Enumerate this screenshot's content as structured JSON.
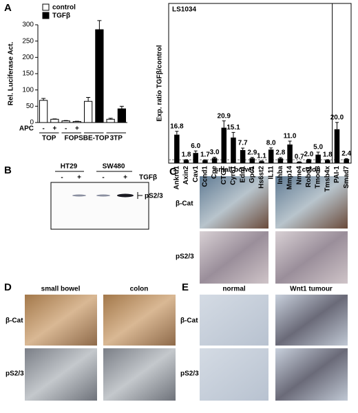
{
  "panel_labels": [
    "A",
    "B",
    "C",
    "D",
    "E"
  ],
  "chart_data": [
    {
      "type": "bar",
      "ylabel": "Rel. Luciferase Act.",
      "ylim": [
        0,
        300
      ],
      "yticks": [
        0,
        50,
        100,
        150,
        200,
        250,
        300
      ],
      "legend": "top-left",
      "row_label": "APC",
      "categories": [
        "-",
        "+",
        "-",
        "+",
        null,
        null,
        null,
        null
      ],
      "groups": [
        "TOP",
        "FOP",
        "SBE-TOP",
        "3TP"
      ],
      "series": [
        {
          "name": "control",
          "color": "#ffffff",
          "values": [
            68,
            10,
            5,
            3,
            65,
            null,
            10,
            null
          ],
          "errors": [
            6,
            1,
            1,
            1,
            12,
            null,
            3,
            null
          ]
        },
        {
          "name": "TGFβ",
          "color": "#000000",
          "values": [
            null,
            null,
            null,
            null,
            null,
            285,
            null,
            42
          ],
          "errors": [
            null,
            null,
            null,
            null,
            null,
            28,
            null,
            8
          ]
        }
      ]
    },
    {
      "type": "bar",
      "title": "LS1034",
      "ylabel": "Exp. ratio TGFβ/control",
      "ylim": [
        0,
        80
      ],
      "reference_line": 2,
      "color": "#000000",
      "categories": [
        "Ankrd1",
        "Axin2",
        "Cav1",
        "Ccnd1",
        "Cpe",
        "CTGF",
        "Cyr61",
        "Edn1",
        "Gpc1",
        "Hs6st2",
        "IL11",
        "Inhba",
        "Mmp14",
        "Nme4",
        "Robo1",
        "Tmod3",
        "Tmsb4x",
        "PAI-1",
        "Smad7"
      ],
      "values": [
        16.8,
        1.8,
        6,
        1.7,
        3,
        20.9,
        15.1,
        7.7,
        2.9,
        1.1,
        8,
        2.8,
        11,
        0.7,
        2,
        5,
        1.8,
        20,
        2.4
      ],
      "value_labels": [
        "16.8",
        "1.8",
        "6.0",
        "1.7",
        "3.0",
        "20.9",
        "15.1",
        "7.7",
        "2.9",
        "1.1",
        "8.0",
        "2.8",
        "11.0",
        "0.7",
        "2.0",
        "5.0",
        "1.8",
        "20.0",
        "2.4"
      ],
      "errors": [
        2,
        0.3,
        1.2,
        0.3,
        0.5,
        4,
        3,
        1.2,
        0.5,
        0.2,
        1,
        0.5,
        2,
        0.1,
        0.3,
        1.5,
        0.3,
        4,
        0.3
      ]
    }
  ],
  "blot": {
    "cell_lines": [
      "HT29",
      "SW480"
    ],
    "lanes": [
      "-",
      "+",
      "-",
      "+"
    ],
    "treatment": "TGFβ",
    "band": "pS2/3"
  },
  "panel_c": {
    "columns": [
      "small bowel",
      "colon"
    ],
    "rows": [
      "β-Cat",
      "pS2/3"
    ]
  },
  "panel_d": {
    "columns": [
      "small bowel",
      "colon"
    ],
    "rows": [
      "β-Cat",
      "pS2/3"
    ]
  },
  "panel_e": {
    "columns": [
      "normal",
      "Wnt1 tumour"
    ],
    "rows": [
      "β-Cat",
      "pS2/3"
    ]
  }
}
